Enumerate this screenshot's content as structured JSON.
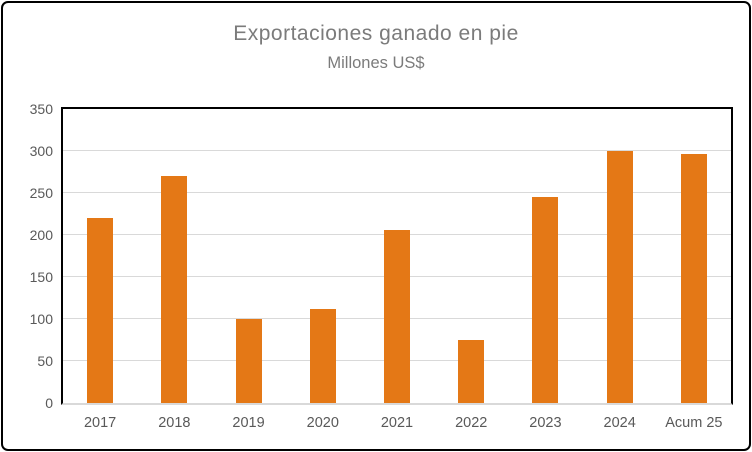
{
  "window": {
    "background_color": "#ffffff",
    "frame_border_color": "#000000"
  },
  "chart_data": {
    "type": "bar",
    "title": "Exportaciones ganado en pie",
    "subtitle": "Millones US$",
    "categories": [
      "2017",
      "2018",
      "2019",
      "2020",
      "2021",
      "2022",
      "2023",
      "2024",
      "Acum 25"
    ],
    "values": [
      220,
      270,
      100,
      112,
      206,
      75,
      245,
      300,
      297
    ],
    "xlabel": "",
    "ylabel": "",
    "ylim": [
      0,
      350
    ],
    "ytick_step": 50,
    "yticks": [
      0,
      50,
      100,
      150,
      200,
      250,
      300,
      350
    ],
    "grid": true,
    "legend_position": "none",
    "bar_color": "#e47816",
    "gridline_color": "#d9d9d9",
    "title_color": "#7b7b7b",
    "axis_tick_color": "#595959",
    "plot_border_color": "#000000"
  }
}
